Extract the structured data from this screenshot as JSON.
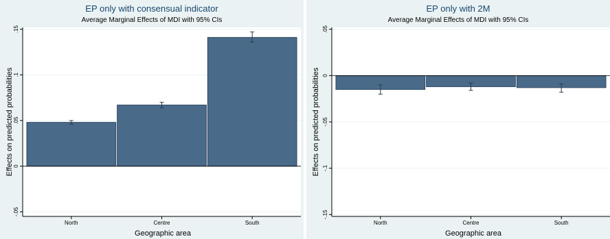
{
  "chart_data": [
    {
      "type": "bar",
      "title": "EP only with consensual indicator",
      "subtitle": "Average Marginal Effects of MDI with 95% CIs",
      "xlabel": "Geographic area",
      "ylabel": "Effects on predicted probabilities",
      "categories": [
        "North",
        "Centre",
        "South"
      ],
      "values": [
        0.048,
        0.067,
        0.141
      ],
      "ci_low": [
        0.046,
        0.064,
        0.136
      ],
      "ci_high": [
        0.05,
        0.07,
        0.147
      ],
      "ylim": [
        -0.055,
        0.152
      ],
      "yticks": [
        -0.05,
        0,
        0.05,
        0.1,
        0.15
      ],
      "ytick_labels": [
        "-.05",
        "0",
        ".05",
        ".1",
        ".15"
      ],
      "grid": true,
      "bar_color": "#4a6a8a"
    },
    {
      "type": "bar",
      "title": "EP only with 2M",
      "subtitle": "Average Marginal Effects of MDI with 95% CIs",
      "xlabel": "Geographic area",
      "ylabel": "Effects on predicted probabilities",
      "categories": [
        "North",
        "Centre",
        "South"
      ],
      "values": [
        -0.015,
        -0.012,
        -0.013
      ],
      "ci_low": [
        -0.02,
        -0.016,
        -0.018
      ],
      "ci_high": [
        -0.01,
        -0.008,
        -0.009
      ],
      "ylim": [
        -0.152,
        0.052
      ],
      "yticks": [
        -0.15,
        -0.1,
        -0.05,
        0,
        0.05
      ],
      "ytick_labels": [
        "-.15",
        "-.1",
        "-.05",
        "0",
        ".05"
      ],
      "grid": true,
      "bar_color": "#4a6a8a"
    }
  ]
}
